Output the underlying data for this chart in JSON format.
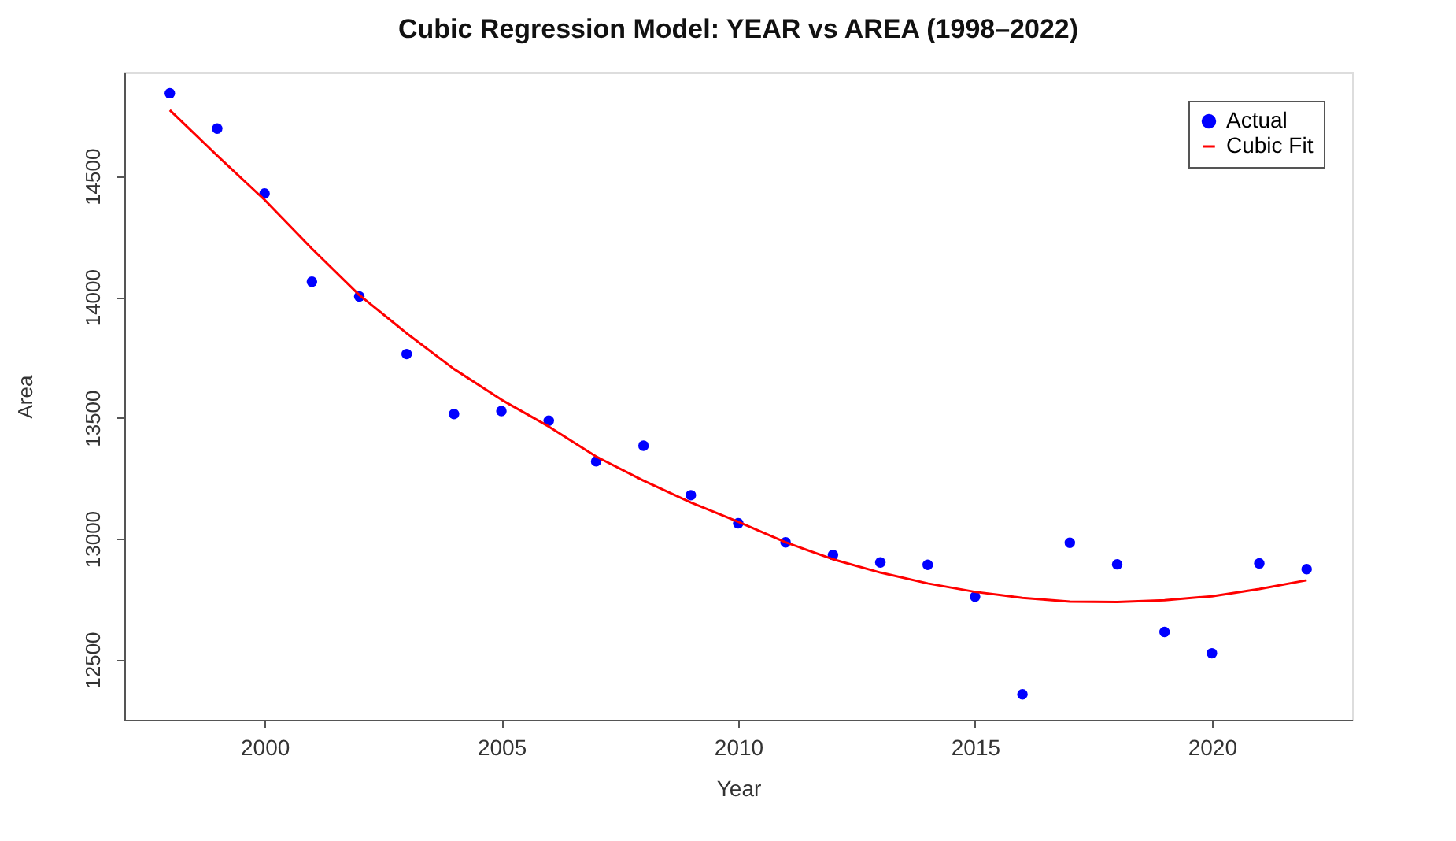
{
  "chart_data": {
    "type": "scatter",
    "title": "Cubic Regression Model: YEAR vs AREA (1998–2022)",
    "xlabel": "Year",
    "ylabel": "Area",
    "x": [
      1998,
      1999,
      2000,
      2001,
      2002,
      2003,
      2004,
      2005,
      2006,
      2007,
      2008,
      2009,
      2010,
      2011,
      2012,
      2013,
      2014,
      2015,
      2016,
      2017,
      2018,
      2019,
      2020,
      2021,
      2022
    ],
    "series": [
      {
        "name": "Actual",
        "marker": "circle",
        "color": "#0000ff",
        "values": [
          14843,
          14697,
          14428,
          14063,
          14002,
          13764,
          13516,
          13528,
          13488,
          13320,
          13385,
          13180,
          13064,
          12985,
          12933,
          12902,
          12892,
          12760,
          12356,
          12983,
          12894,
          12614,
          12526,
          12898,
          12874
        ]
      },
      {
        "name": "Cubic Fit",
        "type": "line",
        "line_style": "solid",
        "color": "#ff0000",
        "x": [
          1998,
          1999,
          2000,
          2001,
          2002,
          2003,
          2004,
          2005,
          2006,
          2007,
          2008,
          2009,
          2010,
          2011,
          2012,
          2013,
          2014,
          2015,
          2016,
          2017,
          2018,
          2019,
          2020,
          2021,
          2022
        ],
        "values": [
          14773,
          14585,
          14402,
          14200,
          14008,
          13850,
          13702,
          13575,
          13464,
          13340,
          13240,
          13150,
          13070,
          12985,
          12915,
          12860,
          12815,
          12780,
          12755,
          12740,
          12738,
          12745,
          12762,
          12792,
          12828
        ]
      }
    ],
    "xlim": [
      1997.04,
      2022.96
    ],
    "ylim": [
      12251,
      14929
    ],
    "xticks": [
      2000,
      2005,
      2010,
      2015,
      2020
    ],
    "yticks": [
      12500,
      13000,
      13500,
      14000,
      14500
    ],
    "grid": false,
    "legend": "top right"
  }
}
